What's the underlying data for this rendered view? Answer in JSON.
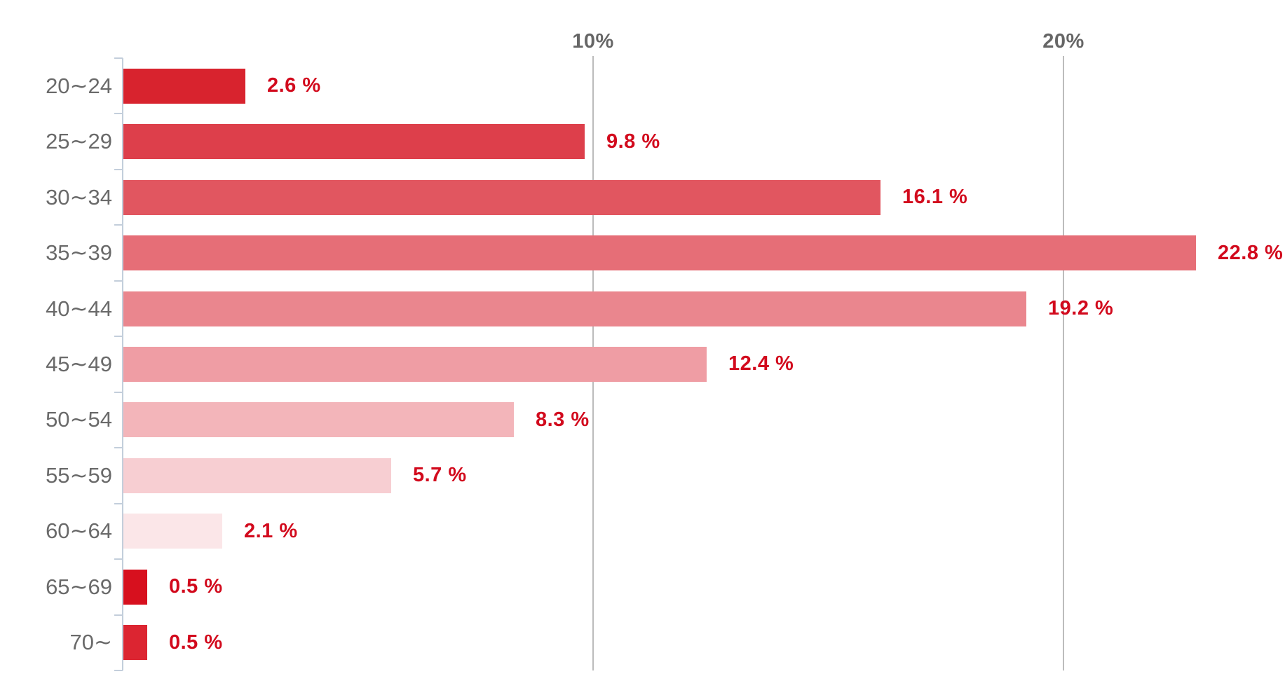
{
  "chart_data": {
    "type": "bar",
    "orientation": "horizontal",
    "title": "",
    "categories": [
      "20〜24",
      "25〜29",
      "30〜34",
      "35〜39",
      "40〜44",
      "45〜49",
      "50〜54",
      "55〜59",
      "60〜64",
      "65〜69",
      "70〜"
    ],
    "values": [
      2.6,
      9.8,
      16.1,
      22.8,
      19.2,
      12.4,
      8.3,
      5.7,
      2.1,
      0.5,
      0.5
    ],
    "value_labels": [
      "2.6 %",
      "9.8 %",
      "16.1 %",
      "22.8 %",
      "19.2 %",
      "12.4 %",
      "8.3 %",
      "5.7 %",
      "2.1 %",
      "0.5 %",
      "0.5 %"
    ],
    "x_axis": {
      "ticks": [
        {
          "label": "10%",
          "value": 10
        },
        {
          "label": "20%",
          "value": 20
        }
      ],
      "range": [
        0,
        24.7
      ]
    },
    "y_axis": {
      "label": "",
      "tick_marks_at_row_boundaries": true
    },
    "legend": "none",
    "grid": "vertical gridlines at 10% and 20% only",
    "bar_colors": [
      "#d8232e",
      "#dd3f4b",
      "#e15660",
      "#e66e77",
      "#ea868e",
      "#ef9da4",
      "#f3b5ba",
      "#f7ced2",
      "#fbe6e8",
      "#d7101e",
      "#dc2531"
    ],
    "colors": {
      "value_label": "#d20a1d",
      "category_label": "#6a6a6a",
      "axis_line": "#c3cedb",
      "gridline": "#bcbcbc",
      "gridline_label": "#666666",
      "background": "#ffffff"
    }
  }
}
